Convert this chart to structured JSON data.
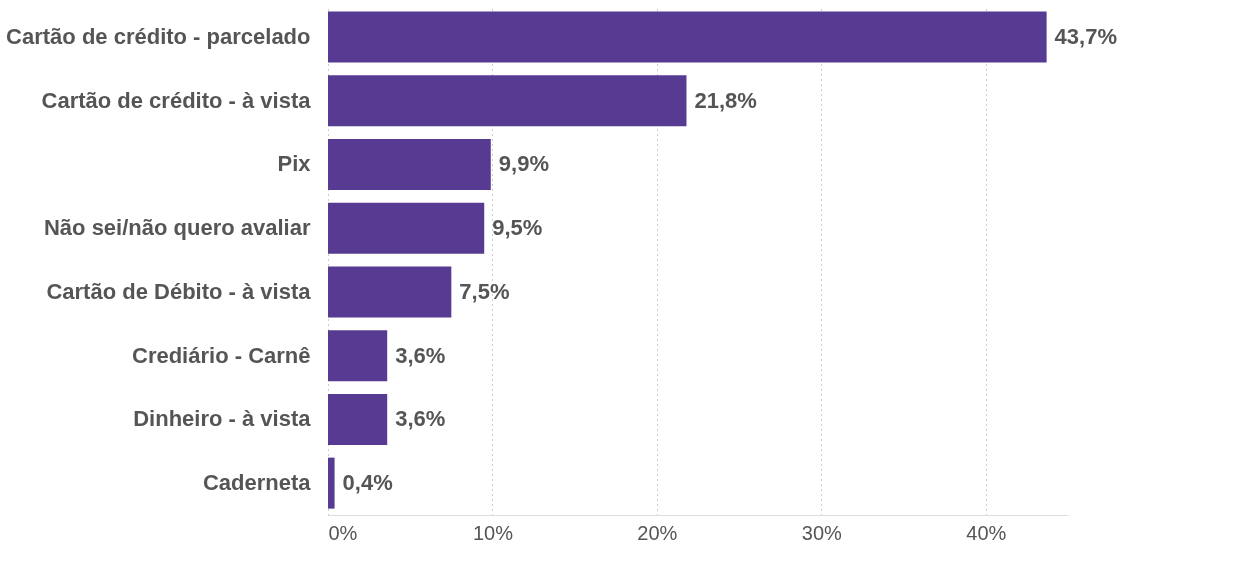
{
  "chart_data": {
    "type": "bar",
    "orientation": "horizontal",
    "categories": [
      "Cartão de crédito - parcelado",
      "Cartão de crédito - à vista",
      "Pix",
      "Não sei/não quero avaliar",
      "Cartão de Débito - à vista",
      "Crediário - Carnê",
      "Dinheiro - à vista",
      "Caderneta"
    ],
    "values": [
      43.7,
      21.8,
      9.9,
      9.5,
      7.5,
      3.6,
      3.6,
      0.4
    ],
    "value_labels": [
      "43,7%",
      "21,8%",
      "9,9%",
      "9,5%",
      "7,5%",
      "3,6%",
      "3,6%",
      "0,4%"
    ],
    "color": "#573b92",
    "xticks": [
      {
        "value": 0,
        "label": "0%"
      },
      {
        "value": 10,
        "label": "10%"
      },
      {
        "value": 20,
        "label": "20%"
      },
      {
        "value": 30,
        "label": "30%"
      },
      {
        "value": 40,
        "label": "40%"
      }
    ],
    "xlim": [
      0,
      45
    ],
    "grid": "x"
  }
}
